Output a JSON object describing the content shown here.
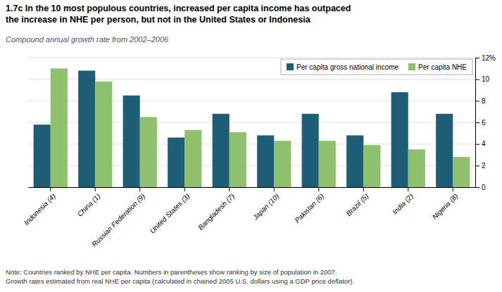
{
  "chart_data": {
    "type": "bar",
    "title": "1.7c  In the 10 most populous countries, increased per capita income has outpaced\nthe increase in NHE per person, but not in the United States or Indonesia",
    "subtitle": "Compound annual growth rate from 2002–2006",
    "annotations": [
      "Note: Countries ranked by NHE per capita. Numbers in parentheses show ranking by size of population in 2007.\nGrowth rates estimated from real NHE per capita (calculated in chained 2005 U.S. dollars using a GDP price deflator)."
    ],
    "categories": [
      "Indonesia (4)",
      "China (1)",
      "Russian Federation (9)",
      "United States (3)",
      "Bangladesh (7)",
      "Japan (10)",
      "Pakistan (6)",
      "Brazil (5)",
      "India (2)",
      "Nigeria (8)"
    ],
    "series": [
      {
        "name": "Per capita gross national income",
        "color": "#1f5f76",
        "values": [
          5.8,
          10.8,
          8.5,
          4.6,
          6.8,
          4.8,
          6.8,
          4.8,
          8.8,
          6.8
        ]
      },
      {
        "name": "Per capita NHE",
        "color": "#8fc06e",
        "values": [
          11.0,
          9.8,
          6.5,
          5.3,
          5.1,
          4.3,
          4.3,
          3.9,
          3.5,
          2.8
        ]
      }
    ],
    "ylim": [
      0,
      12
    ],
    "yticks": [
      0,
      2,
      4,
      6,
      8,
      10,
      {
        "value": 12,
        "label": "12%"
      }
    ],
    "grid": true,
    "legend": "upper right"
  }
}
